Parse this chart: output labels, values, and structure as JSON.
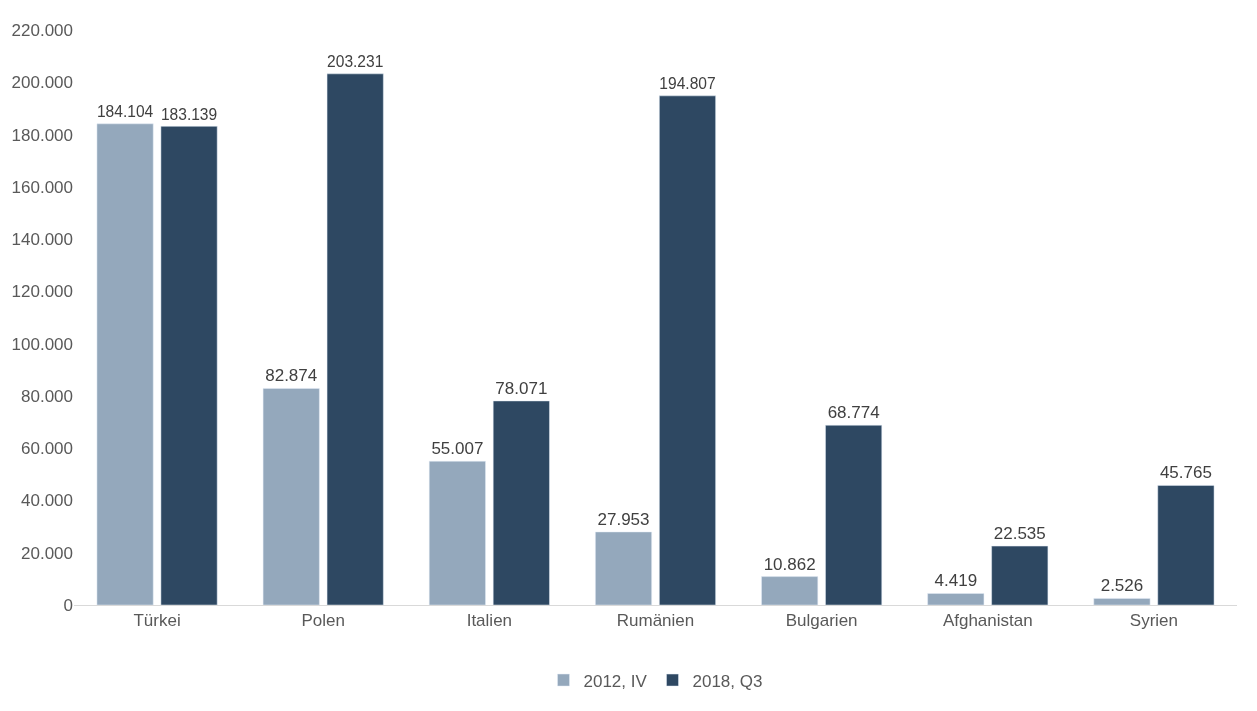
{
  "chart_data": {
    "type": "bar",
    "categories": [
      "Türkei",
      "Polen",
      "Italien",
      "Rumänien",
      "Bulgarien",
      "Afghanistan",
      "Syrien"
    ],
    "series": [
      {
        "name": "2012, IV",
        "color": "#94a8bc",
        "values": [
          184104,
          82874,
          55007,
          27953,
          10862,
          4419,
          2526
        ],
        "value_labels": [
          "184.104",
          "82.874",
          "55.007",
          "27.953",
          "10.862",
          "4.419",
          "2.526"
        ]
      },
      {
        "name": "2018, Q3",
        "color": "#2e4862",
        "values": [
          183139,
          203231,
          78071,
          194807,
          68774,
          22535,
          45765
        ],
        "value_labels": [
          "183.139",
          "203.231",
          "78.071",
          "194.807",
          "68.774",
          "22.535",
          "45.765"
        ]
      }
    ],
    "ylim": [
      0,
      220000
    ],
    "yticks": [
      {
        "value": 0,
        "label": "0"
      },
      {
        "value": 20000,
        "label": "20.000"
      },
      {
        "value": 40000,
        "label": "40.000"
      },
      {
        "value": 60000,
        "label": "60.000"
      },
      {
        "value": 80000,
        "label": "80.000"
      },
      {
        "value": 100000,
        "label": "100.000"
      },
      {
        "value": 120000,
        "label": "120.000"
      },
      {
        "value": 140000,
        "label": "140.000"
      },
      {
        "value": 160000,
        "label": "160.000"
      },
      {
        "value": 180000,
        "label": "180.000"
      },
      {
        "value": 200000,
        "label": "200.000"
      },
      {
        "value": 220000,
        "label": "220.000"
      }
    ],
    "grid": false,
    "legend": "bottom"
  }
}
